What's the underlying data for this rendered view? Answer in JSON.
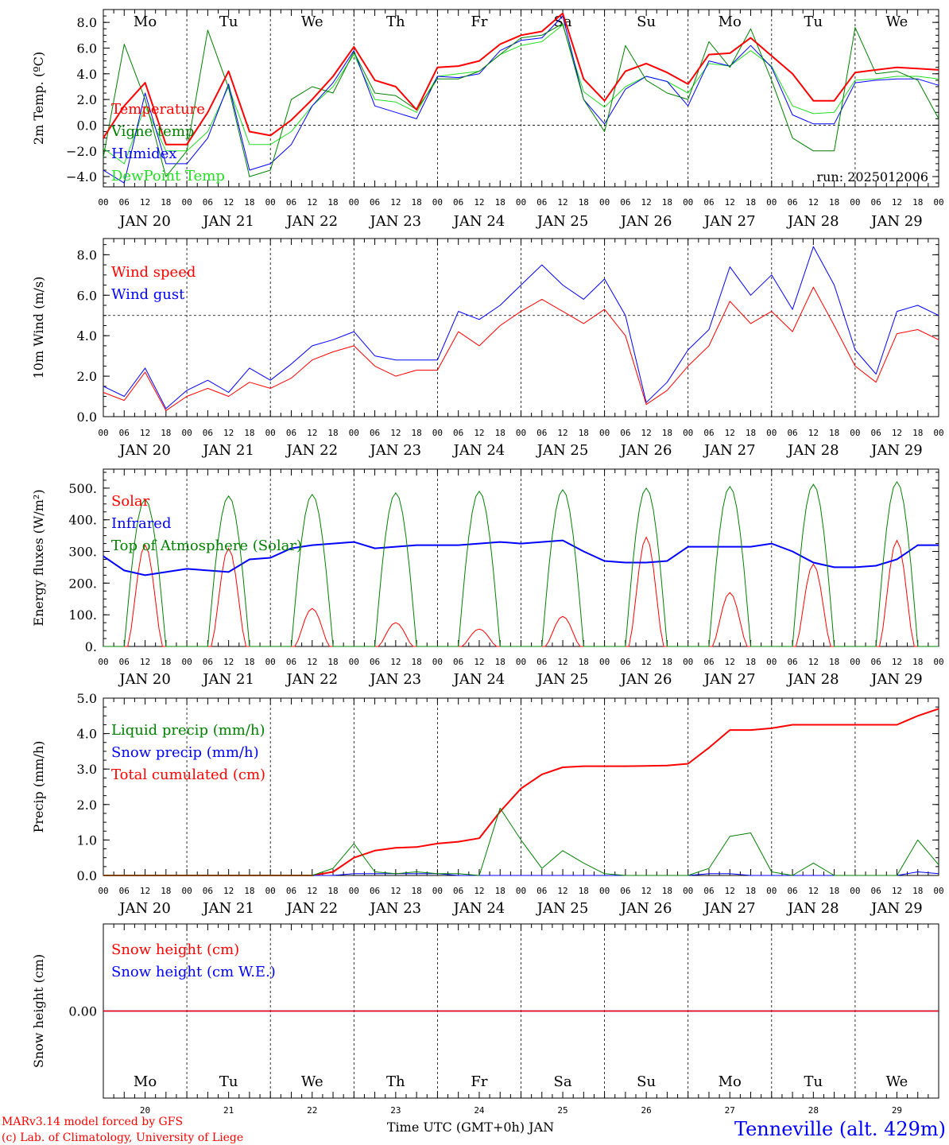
{
  "colors": {
    "red": "#ff0000",
    "green": "#008000",
    "blue": "#0000ff",
    "lightgreen": "#22dd22",
    "black": "#000000"
  },
  "days": [
    "Mo",
    "Tu",
    "We",
    "Th",
    "Fr",
    "Sa",
    "Su",
    "Mo",
    "Tu",
    "We"
  ],
  "day_colors": [
    "#000000",
    "#000000",
    "#000000",
    "#000000",
    "#000000",
    "#ff0000",
    "#ff0000",
    "#000000",
    "#000000",
    "#000000"
  ],
  "dates": [
    "JAN 20",
    "JAN 21",
    "JAN 22",
    "JAN 23",
    "JAN 24",
    "JAN 25",
    "JAN 26",
    "JAN 27",
    "JAN 28",
    "JAN 29"
  ],
  "hour_ticks": [
    "00",
    "06",
    "12",
    "18"
  ],
  "bottom_day_numbers": [
    "20",
    "21",
    "22",
    "23",
    "24",
    "25",
    "26",
    "27",
    "28",
    "29"
  ],
  "footer": {
    "credit_line1": "MARv3.14 model forced by GFS",
    "credit_line2": "(c) Lab. of Climatology, University of Liege",
    "axis_title": "Time UTC (GMT+0h) JAN",
    "station": "Tenneville (alt. 429m)"
  },
  "chart_data": [
    {
      "type": "line",
      "ylabel": "2m Temp. (ºC)",
      "ylim": [
        -4.8,
        9.0
      ],
      "yticks": [
        "8.0",
        "6.0",
        "4.0",
        "2.0",
        "0.0",
        "−2.0",
        "−4.0"
      ],
      "ytick_values": [
        8,
        6,
        4,
        2,
        0,
        -2,
        -4
      ],
      "ref_line": 0,
      "run_label": "run: 2025012006",
      "x_hours": [
        0,
        6,
        12,
        18,
        24,
        30,
        36,
        42,
        48,
        54,
        60,
        66,
        72,
        78,
        84,
        90,
        96,
        102,
        108,
        114,
        120,
        126,
        132,
        138,
        144,
        150,
        156,
        162,
        168,
        174,
        180,
        186,
        192,
        198,
        204,
        210,
        216,
        222,
        228,
        234,
        240
      ],
      "series": [
        {
          "name": "Temperature",
          "color": "#ff0000",
          "width": 2,
          "values": [
            -1.0,
            1.5,
            3.3,
            -1.5,
            -1.5,
            1.0,
            4.2,
            -0.5,
            -0.8,
            0.4,
            2.0,
            3.8,
            6.1,
            3.5,
            3.0,
            1.2,
            4.5,
            4.6,
            5.0,
            6.3,
            7.0,
            7.3,
            8.7,
            3.6,
            1.9,
            4.2,
            4.8,
            4.1,
            3.2,
            5.5,
            5.6,
            6.8,
            5.4,
            4.0,
            1.9,
            1.9,
            4.1,
            4.3,
            4.5,
            4.4,
            4.3
          ]
        },
        {
          "name": "Vigne temp",
          "color": "#008000",
          "width": 1,
          "values": [
            -2.5,
            6.3,
            2.0,
            -4.0,
            -2.0,
            7.4,
            2.9,
            -4.0,
            -3.5,
            2.0,
            3.0,
            2.5,
            5.7,
            2.5,
            2.3,
            1.2,
            3.6,
            3.6,
            4.2,
            5.5,
            6.8,
            7.0,
            7.9,
            2.0,
            -0.5,
            6.2,
            3.5,
            2.5,
            2.0,
            6.5,
            4.5,
            7.5,
            3.5,
            -1.0,
            -2.0,
            -2.0,
            7.6,
            4.0,
            4.2,
            3.5,
            0.5
          ]
        },
        {
          "name": "Humidex",
          "color": "#0000ff",
          "width": 1,
          "values": [
            -3.5,
            -4.5,
            2.5,
            -3.0,
            -3.0,
            -1.0,
            3.2,
            -3.5,
            -3.0,
            -1.5,
            1.5,
            3.3,
            5.8,
            1.5,
            1.0,
            0.5,
            3.8,
            3.7,
            4.0,
            5.8,
            6.6,
            6.8,
            8.5,
            2.0,
            0.1,
            2.8,
            3.8,
            3.4,
            1.5,
            5.0,
            4.6,
            6.2,
            4.5,
            0.8,
            0.1,
            0.1,
            3.3,
            3.5,
            3.6,
            3.6,
            3.1
          ]
        },
        {
          "name": "DewPoint Temp",
          "color": "#22dd22",
          "width": 1,
          "values": [
            -1.8,
            -3.0,
            1.5,
            -2.0,
            -2.0,
            -0.5,
            3.0,
            -1.5,
            -1.5,
            -0.5,
            1.5,
            3.0,
            5.5,
            2.0,
            1.8,
            1.0,
            3.8,
            4.0,
            4.2,
            5.5,
            6.2,
            6.5,
            7.8,
            2.6,
            1.4,
            3.0,
            3.8,
            3.4,
            2.5,
            4.8,
            4.6,
            5.8,
            4.6,
            1.5,
            0.9,
            1.0,
            3.5,
            3.6,
            3.8,
            3.8,
            3.6
          ]
        }
      ]
    },
    {
      "type": "line",
      "ylabel": "10m Wind (m/s)",
      "ylim": [
        0,
        8.8
      ],
      "yticks": [
        "8.0",
        "6.0",
        "4.0",
        "2.0",
        "0.0"
      ],
      "ytick_values": [
        8,
        6,
        4,
        2,
        0
      ],
      "ref_line": 5,
      "x_hours": [
        0,
        6,
        12,
        18,
        24,
        30,
        36,
        42,
        48,
        54,
        60,
        66,
        72,
        78,
        84,
        90,
        96,
        102,
        108,
        114,
        120,
        126,
        132,
        138,
        144,
        150,
        156,
        162,
        168,
        174,
        180,
        186,
        192,
        198,
        204,
        210,
        216,
        222,
        228,
        234,
        240
      ],
      "series": [
        {
          "name": "Wind speed",
          "color": "#ff0000",
          "width": 1,
          "values": [
            1.2,
            0.8,
            2.2,
            0.3,
            1.0,
            1.4,
            1.0,
            1.7,
            1.4,
            1.9,
            2.8,
            3.2,
            3.5,
            2.5,
            2.0,
            2.3,
            2.3,
            4.2,
            3.5,
            4.5,
            5.2,
            5.8,
            5.2,
            4.6,
            5.3,
            4.0,
            0.6,
            1.3,
            2.5,
            3.5,
            5.7,
            4.6,
            5.2,
            4.2,
            6.4,
            4.5,
            2.5,
            1.7,
            4.1,
            4.3,
            3.8
          ]
        },
        {
          "name": "Wind gust",
          "color": "#0000ff",
          "width": 1,
          "values": [
            1.5,
            1.0,
            2.4,
            0.4,
            1.3,
            1.8,
            1.2,
            2.4,
            1.8,
            2.6,
            3.5,
            3.8,
            4.2,
            3.0,
            2.8,
            2.8,
            2.8,
            5.2,
            4.8,
            5.5,
            6.5,
            7.5,
            6.5,
            5.8,
            6.8,
            5.0,
            0.7,
            1.7,
            3.3,
            4.3,
            7.4,
            6.0,
            7.0,
            5.3,
            8.4,
            6.5,
            3.3,
            2.1,
            5.2,
            5.5,
            5.0
          ]
        }
      ]
    },
    {
      "type": "line",
      "ylabel": "Energy fluxes (W/m²)",
      "ylim": [
        0,
        560
      ],
      "yticks": [
        "500.",
        "400.",
        "300.",
        "200.",
        "100.",
        "0."
      ],
      "ytick_values": [
        500,
        400,
        300,
        200,
        100,
        0
      ],
      "days_solar_peak": [
        320,
        310,
        120,
        75,
        55,
        95,
        345,
        170,
        260,
        335
      ],
      "days_toa_peak": [
        465,
        475,
        480,
        485,
        490,
        495,
        500,
        505,
        512,
        520
      ],
      "infrared_values": [
        285,
        240,
        225,
        235,
        245,
        240,
        235,
        275,
        280,
        310,
        320,
        325,
        330,
        310,
        315,
        320,
        320,
        320,
        325,
        330,
        325,
        330,
        335,
        300,
        270,
        265,
        265,
        270,
        315,
        315,
        315,
        315,
        325,
        300,
        265,
        250,
        250,
        255,
        275,
        320,
        320
      ],
      "series": [
        {
          "name": "Solar",
          "color": "#ff0000",
          "width": 1
        },
        {
          "name": "Infrared",
          "color": "#0000ff",
          "width": 2
        },
        {
          "name": "Top of Atmosphere (Solar)",
          "color": "#008000",
          "width": 1
        }
      ]
    },
    {
      "type": "line",
      "ylabel": "Precip (mm/h)",
      "ylim": [
        0,
        5.0
      ],
      "yticks": [
        "5.0",
        "4.0",
        "3.0",
        "2.0",
        "1.0",
        "0.0"
      ],
      "ytick_values": [
        5,
        4,
        3,
        2,
        1,
        0
      ],
      "x_hours": [
        0,
        6,
        12,
        18,
        24,
        30,
        36,
        42,
        48,
        54,
        60,
        66,
        72,
        78,
        84,
        90,
        96,
        102,
        108,
        114,
        120,
        126,
        132,
        138,
        144,
        150,
        156,
        162,
        168,
        174,
        180,
        186,
        192,
        198,
        204,
        210,
        216,
        222,
        228,
        234,
        240
      ],
      "series": [
        {
          "name": "Liquid precip (mm/h)",
          "color": "#008000",
          "width": 1,
          "values": [
            0,
            0,
            0,
            0,
            0,
            0,
            0,
            0,
            0,
            0,
            0,
            0.2,
            0.9,
            0.1,
            0.05,
            0.1,
            0.05,
            0.05,
            0,
            1.9,
            1.0,
            0.2,
            0.7,
            0.35,
            0.05,
            0,
            0,
            0,
            0,
            0.2,
            1.1,
            1.2,
            0.1,
            0,
            0.35,
            0,
            0,
            0,
            0,
            1.0,
            0.3
          ]
        },
        {
          "name": "Snow precip (mm/h)",
          "color": "#0000ff",
          "width": 1,
          "values": [
            0,
            0,
            0,
            0,
            0,
            0,
            0,
            0,
            0,
            0,
            0,
            0,
            0.05,
            0.05,
            0.05,
            0.05,
            0.05,
            0,
            0,
            0,
            0,
            0,
            0,
            0,
            0,
            0,
            0,
            0,
            0,
            0.05,
            0.05,
            0,
            0,
            0,
            0,
            0,
            0,
            0,
            0,
            0.1,
            0.05
          ]
        },
        {
          "name": "Total cumulated (cm)",
          "color": "#ff0000",
          "width": 2,
          "values": [
            0,
            0,
            0,
            0,
            0,
            0,
            0,
            0,
            0,
            0,
            0,
            0.1,
            0.5,
            0.7,
            0.78,
            0.8,
            0.9,
            0.95,
            1.05,
            1.8,
            2.45,
            2.85,
            3.05,
            3.08,
            3.08,
            3.08,
            3.09,
            3.1,
            3.15,
            3.6,
            4.1,
            4.1,
            4.15,
            4.25,
            4.25,
            4.25,
            4.25,
            4.25,
            4.25,
            4.5,
            4.7
          ]
        }
      ]
    },
    {
      "type": "line",
      "ylabel": "Snow height (cm)",
      "ylim": [
        -1,
        1
      ],
      "yticks": [
        "0.00"
      ],
      "ytick_values": [
        0
      ],
      "series": [
        {
          "name": "Snow height (cm)",
          "color": "#ff0000",
          "width": 1,
          "values": [
            0,
            0
          ]
        },
        {
          "name": "Snow height (cm W.E.)",
          "color": "#0000ff",
          "width": 1,
          "values": [
            0,
            0
          ]
        }
      ]
    }
  ]
}
